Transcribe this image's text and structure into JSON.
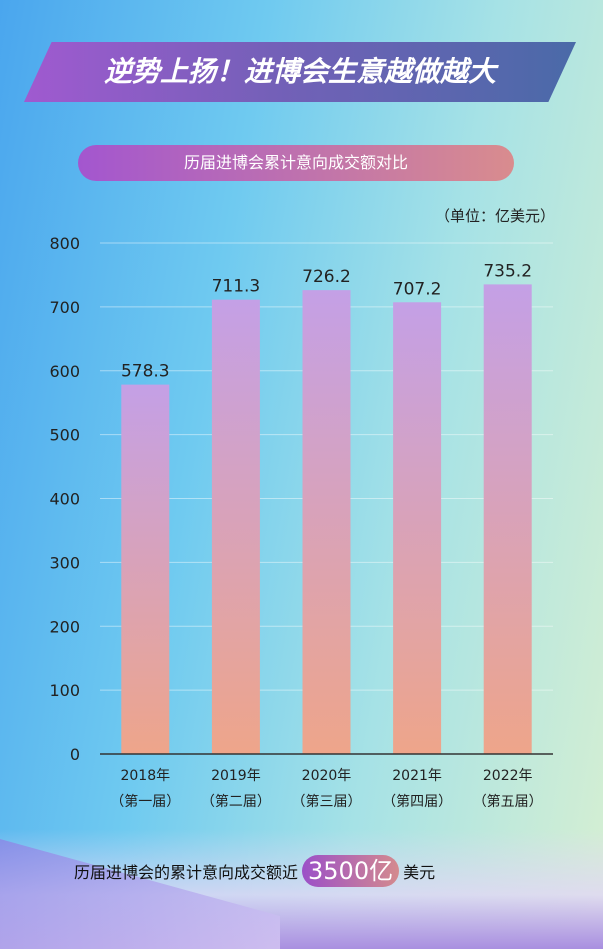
{
  "header": {
    "title": "逆势上扬！进博会生意越做越大"
  },
  "chart_data": {
    "type": "bar",
    "title": "历届进博会累计意向成交额对比",
    "unit": "（单位：亿美元）",
    "categories": [
      "2018年",
      "2019年",
      "2020年",
      "2021年",
      "2022年"
    ],
    "category_sublabels": [
      "（第一届）",
      "（第二届）",
      "（第三届）",
      "（第四届）",
      "（第五届）"
    ],
    "values": [
      578.3,
      711.3,
      726.2,
      707.2,
      735.2
    ],
    "ylim": [
      0,
      800
    ],
    "yticks": [
      0,
      100,
      200,
      300,
      400,
      500,
      600,
      700,
      800
    ],
    "grid": true,
    "bar_gradient": [
      "#c4a0e6",
      "#eea58a"
    ]
  },
  "footer": {
    "prefix": "历届进博会的累计意向成交额近",
    "highlight": "3500亿",
    "suffix": "美元"
  }
}
